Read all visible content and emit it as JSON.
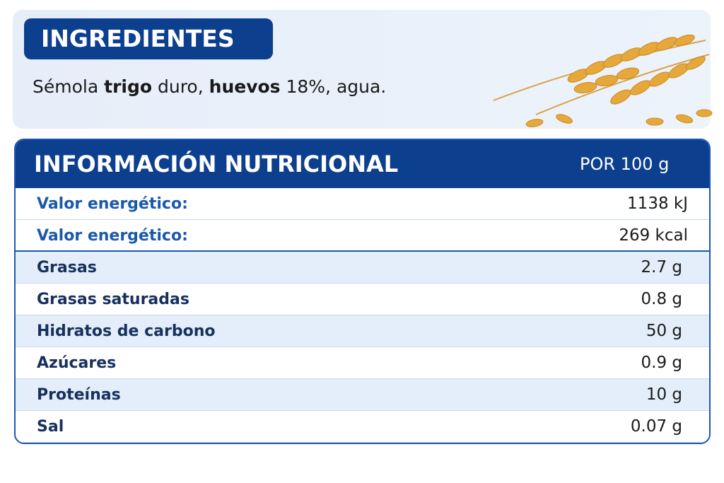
{
  "ingredients": {
    "title": "INGREDIENTES",
    "segments": [
      {
        "text": "Sémola ",
        "bold": false
      },
      {
        "text": "trigo",
        "bold": true
      },
      {
        "text": " duro, ",
        "bold": false
      },
      {
        "text": "huevos",
        "bold": true
      },
      {
        "text": " 18%, agua.",
        "bold": false
      }
    ]
  },
  "nutrition": {
    "title": "INFORMACIÓN NUTRICIONAL",
    "per": "POR 100 g",
    "rows": [
      {
        "label": "Valor energético:",
        "value": "1138 kJ"
      },
      {
        "label": "Valor energético:",
        "value": "269 kcal"
      },
      {
        "label": "Grasas",
        "value": "2.7 g"
      },
      {
        "label": "Grasas saturadas",
        "value": "0.8 g"
      },
      {
        "label": "Hidratos de carbono",
        "value": "50 g"
      },
      {
        "label": "Azúcares",
        "value": "0.9 g"
      },
      {
        "label": "Proteínas",
        "value": "10 g"
      },
      {
        "label": "Sal",
        "value": "0.07 g"
      }
    ]
  }
}
